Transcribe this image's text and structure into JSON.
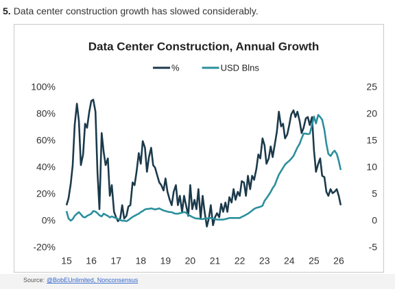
{
  "header": {
    "number": "5.",
    "text": "Data center construction growth has slowed considerably."
  },
  "source": {
    "prefix": "Source:",
    "link": "@BobEUnlimited, Nonconsensus"
  },
  "chart_data": {
    "type": "line",
    "title": "Data Center Construction, Annual Growth",
    "x": [
      15,
      15.08,
      15.17,
      15.25,
      15.33,
      15.42,
      15.5,
      15.58,
      15.67,
      15.75,
      15.83,
      15.92,
      16,
      16.08,
      16.17,
      16.25,
      16.33,
      16.42,
      16.5,
      16.58,
      16.67,
      16.75,
      16.83,
      16.92,
      17,
      17.08,
      17.17,
      17.25,
      17.33,
      17.42,
      17.5,
      17.58,
      17.67,
      17.75,
      17.83,
      17.92,
      18,
      18.08,
      18.17,
      18.25,
      18.33,
      18.42,
      18.5,
      18.58,
      18.67,
      18.75,
      18.83,
      18.92,
      19,
      19.08,
      19.17,
      19.25,
      19.33,
      19.42,
      19.5,
      19.58,
      19.67,
      19.75,
      19.83,
      19.92,
      20,
      20.08,
      20.17,
      20.25,
      20.33,
      20.42,
      20.5,
      20.58,
      20.67,
      20.75,
      20.83,
      20.92,
      21,
      21.08,
      21.17,
      21.25,
      21.33,
      21.42,
      21.5,
      21.58,
      21.67,
      21.75,
      21.83,
      21.92,
      22,
      22.08,
      22.17,
      22.25,
      22.33,
      22.42,
      22.5,
      22.58,
      22.67,
      22.75,
      22.83,
      22.92,
      23,
      23.08,
      23.17,
      23.25,
      23.33,
      23.42,
      23.5,
      23.58,
      23.67,
      23.75,
      23.83,
      23.92,
      24,
      24.08,
      24.17,
      24.25,
      24.33,
      24.42,
      24.5,
      24.58,
      24.67,
      24.75,
      24.83,
      24.92,
      25,
      25.08,
      25.17,
      25.25,
      25.33,
      25.42,
      25.5,
      25.58,
      25.67,
      25.75,
      25.83,
      25.92,
      26,
      26.08
    ],
    "series": [
      {
        "name": "%",
        "color": "#1b3a4b",
        "axis": "y",
        "values": [
          12,
          17,
          28,
          42,
          72,
          88,
          75,
          42,
          50,
          73,
          70,
          82,
          90,
          91,
          82,
          37,
          9,
          66,
          52,
          42,
          47,
          19,
          27,
          7,
          3,
          0,
          2,
          12,
          2,
          4,
          11,
          12,
          29,
          27,
          37,
          51,
          43,
          60,
          55,
          37,
          48,
          55,
          42,
          40,
          34,
          29,
          27,
          23,
          32,
          22,
          16,
          12,
          22,
          27,
          12,
          19,
          7,
          19,
          12,
          4,
          27,
          9,
          16,
          9,
          24,
          2,
          19,
          7,
          -4,
          2,
          12,
          -3,
          3,
          6,
          3,
          13,
          7,
          14,
          7,
          18,
          14,
          24,
          16,
          22,
          19,
          30,
          29,
          19,
          34,
          24,
          34,
          31,
          39,
          50,
          47,
          62,
          57,
          43,
          47,
          56,
          48,
          58,
          67,
          82,
          71,
          73,
          62,
          65,
          72,
          80,
          83,
          78,
          82,
          75,
          66,
          70,
          77,
          78,
          72,
          78,
          53,
          37,
          43,
          47,
          34,
          33,
          22,
          19,
          24,
          21,
          22,
          24,
          19,
          12
        ]
      },
      {
        "name": "USD Blns",
        "color": "#2b8f9c",
        "axis": "y2",
        "values": [
          1.9,
          0.5,
          0.1,
          0.4,
          1.0,
          1.4,
          1.7,
          1.3,
          0.8,
          0.7,
          1.0,
          1.2,
          1.4,
          1.9,
          1.8,
          1.5,
          1.1,
          0.9,
          1.4,
          1.2,
          1.0,
          0.7,
          0.9,
          0.7,
          0.6,
          0.4,
          0.2,
          0.1,
          0.1,
          0,
          0.2,
          0.5,
          0.8,
          1.0,
          1.2,
          1.4,
          1.7,
          1.9,
          2.2,
          2.3,
          2.3,
          2.4,
          2.3,
          2.2,
          2.3,
          2.4,
          2.2,
          2.0,
          1.9,
          1.8,
          1.7,
          1.7,
          1.5,
          1.4,
          1.4,
          1.5,
          1.6,
          1.7,
          1.6,
          1.2,
          1.0,
          0.8,
          0.6,
          0.5,
          0.5,
          0.4,
          0.4,
          0.5,
          0.5,
          0.6,
          0.6,
          0.5,
          0.4,
          0.3,
          0.3,
          0.3,
          0.3,
          0.4,
          0.5,
          0.6,
          0.6,
          0.6,
          0.6,
          0.6,
          0.6,
          0.8,
          1.0,
          1.2,
          1.4,
          1.7,
          2.0,
          2.3,
          2.5,
          2.6,
          2.7,
          2.9,
          3.8,
          4.3,
          4.9,
          5.5,
          6.2,
          6.8,
          7.8,
          8.7,
          9.4,
          10.0,
          10.6,
          11.0,
          11.3,
          11.7,
          12.2,
          13.0,
          13.8,
          14.5,
          15.5,
          16.4,
          16.4,
          16.3,
          16.4,
          18.0,
          19.6,
          18.3,
          19.9,
          19.5,
          19.0,
          17.1,
          14.5,
          12.6,
          12.2,
          12.8,
          13.2,
          12.6,
          11.3,
          9.6
        ]
      }
    ],
    "xlim": [
      15,
      26.3
    ],
    "xticks": [
      15,
      16,
      17,
      18,
      19,
      20,
      21,
      22,
      23,
      24,
      25,
      26
    ],
    "ylim": [
      -20,
      100
    ],
    "yticks": [
      {
        "value": -20,
        "label": "-20%"
      },
      {
        "value": 0,
        "label": "0%"
      },
      {
        "value": 20,
        "label": "20%"
      },
      {
        "value": 40,
        "label": "40%"
      },
      {
        "value": 60,
        "label": "60%"
      },
      {
        "value": 80,
        "label": "80%"
      },
      {
        "value": 100,
        "label": "100%"
      }
    ],
    "y2lim": [
      -5,
      25
    ],
    "y2ticks": [
      -5,
      0,
      5,
      10,
      15,
      20,
      25
    ],
    "grid": false
  }
}
